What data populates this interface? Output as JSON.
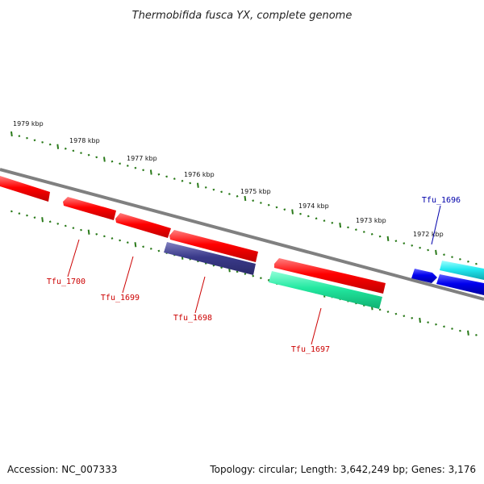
{
  "title": "Thermobifida fusca YX, complete genome",
  "accession": "Accession: NC_007333",
  "summary": "Topology: circular; Length: 3,642,249 bp; Genes: 3,176",
  "colors": {
    "backbone": "#808080",
    "tick": "#2a7a1a",
    "gene_red": "#ff0000",
    "gene_navy": "#3a3a8a",
    "gene_green": "#22e8a0",
    "gene_blue": "#0000ee",
    "gene_cyan": "#22e8f0",
    "label_red": "#cc0000",
    "label_blue": "#0000aa"
  },
  "ticks": [
    {
      "label": "1979 kbp"
    },
    {
      "label": "1978 kbp"
    },
    {
      "label": "1977 kbp"
    },
    {
      "label": "1976 kbp"
    },
    {
      "label": "1975 kbp"
    },
    {
      "label": "1974 kbp"
    },
    {
      "label": "1973 kbp"
    },
    {
      "label": "1972 kbp"
    }
  ],
  "genes": [
    {
      "label": "Tfu_1700",
      "strand": "reverse",
      "color": "red"
    },
    {
      "label": "Tfu_1699",
      "strand": "reverse",
      "color": "red"
    },
    {
      "label": "Tfu_1698",
      "strand": "reverse",
      "color": "navy"
    },
    {
      "label": "Tfu_1697",
      "strand": "reverse",
      "color": "green"
    },
    {
      "label": "Tfu_1696",
      "strand": "forward",
      "color": "blue"
    }
  ]
}
